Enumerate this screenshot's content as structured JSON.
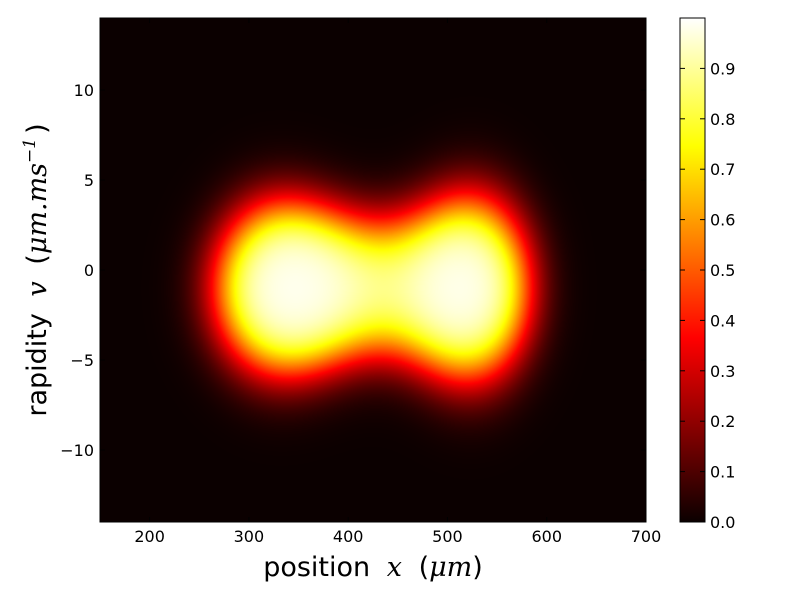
{
  "chart_data": {
    "type": "heatmap",
    "title": "",
    "xlabel": "position",
    "xlabel_math": "x",
    "xlabel_unit": "μm",
    "ylabel": "rapidity",
    "ylabel_math": "v",
    "ylabel_unit": "μm.ms",
    "ylabel_exponent": "−1",
    "xlim": [
      150,
      700
    ],
    "ylim": [
      -14,
      14
    ],
    "xticks": [
      200,
      300,
      400,
      500,
      600,
      700
    ],
    "yticks": [
      -10,
      -5,
      0,
      5,
      10
    ],
    "colormap": "hot",
    "colorbar": {
      "range": [
        0.0,
        1.0
      ],
      "ticks": [
        "0.0",
        "0.1",
        "0.2",
        "0.3",
        "0.4",
        "0.5",
        "0.6",
        "0.7",
        "0.8",
        "0.9"
      ]
    },
    "density_components": [
      {
        "x": 330,
        "v": -1.0,
        "sx": 50,
        "sv": 3.6,
        "amp": 1.0
      },
      {
        "x": 525,
        "v": -1.0,
        "sx": 45,
        "sv": 3.9,
        "amp": 1.0
      },
      {
        "x": 425,
        "v": -1.0,
        "sx": 70,
        "sv": 3.0,
        "amp": 0.75
      }
    ]
  }
}
